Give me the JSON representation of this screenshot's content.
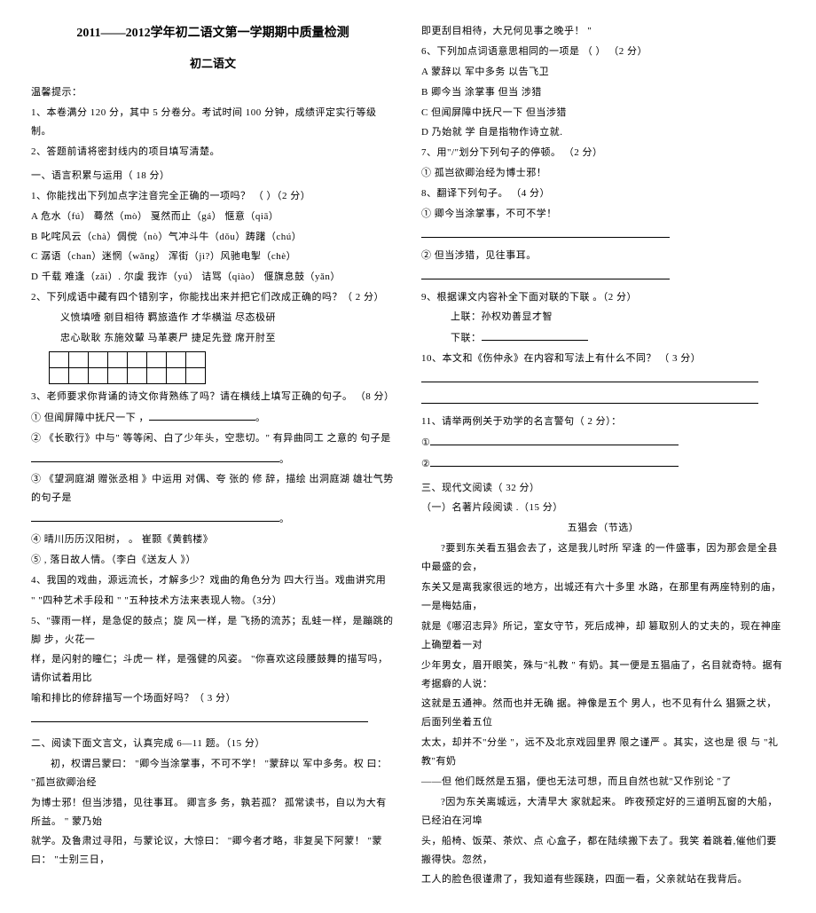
{
  "header": {
    "title": "2011——2012学年初二语文第一学期期中质量检测",
    "subtitle": "初二语文"
  },
  "left": {
    "tip_label": "温馨提示：",
    "tip1": "1、本卷满分  120 分，其中  5 分卷分。考试时间   100 分钟，成绩评定实行等级制。",
    "tip2": "2、答题前请将密封线内的项目填写清楚。",
    "sec1_title": "一、语言积累与运用（   18 分）",
    "q1": "1、你能找出下列加点字注音完全正确的一项吗？  （    ）（2 分）",
    "q1a": "A 危水（fú）   蓦然（mò）   戛然而止（gá）   惬意（qiā）",
    "q1b": "B 叱咤风云（chà）倜傥（nò）气冲斗牛（dǒu）踌躇（chú）",
    "q1c": "C 潺语（chan）迷惘（wǎng） 浑街（jì?）风驰电掣（chè）",
    "q1d": "D 千载 难逢（zǎi）. 尔虞 我诈（yú）  诘骂（qiào） 偃旗息鼓（yǎn）",
    "q2": "2、下列成语中藏有四个错别字，你能找出来并把它们改成正确的吗？（    2 分）",
    "q2_words": "义愤填噎     剜目相待     羁旅造作     才华横溢     尽态极研",
    "q2_words2": "忠心耿耿     东施效颦     马革裹尸     捷足先登     席开肘至",
    "q3": "3、老师要求你背诵的诗文你背熟练了吗？请在横线上填写正确的句子。         （8 分）",
    "q3_1": "①  但闻屏障中抚尺一下  ，",
    "q3_2": "②  《长歌行》中与\"   等等闲、白了少年头，空悲切。\" 有异曲同工 之意的 句子是",
    "q3_3": "③   《望洞庭湖  赠张丞相 》中运用  对偶、夸 张的 修 辞，描绘  出洞庭湖  雄壮气势 的句子是",
    "q3_4": "④  晴川历历汉阳树，                         。 崔颢《黄鹤楼》",
    "q3_5": "⑤                 , 落日故人情。（李白《送友人 》）",
    "q4": "4、我国的戏曲，源远流长，才解多少？戏曲的角色分为          四大行当。戏曲讲究用",
    "q4_2": "\"              \"四种艺术手段和  \"              \"五种技术方法来表现人物。（3分）",
    "q5": "5、\"骤雨一样，是急促的鼓点；旋  风一样，是 飞扬的流苏；乱蛙一样，是蹦跳的脚 步，火花一",
    "q5_2": "样，是闪射的瞳仁；斗虎一 样，是强健的风姿。     \"你喜欢这段腰鼓舞的描写吗，请你试着用比",
    "q5_3": "喻和排比的修辞描写一个场面好吗？（ 3 分）",
    "sec2_title": "二、阅读下面文言文，认真完成      6—11 题。（15 分）",
    "p1": "初，权谓吕蒙曰：  \"卿今当涂掌事，不可不学！     \"蒙辞以 军中多务。权 曰：   \"孤岂欲卿治经",
    "p2": "为博士邪！但当涉猎，见往事耳。   卿言多  务，孰若孤？  孤常读书，自以为大有所益。  \" 蒙乃始",
    "p3": "就学。及鲁肃过寻阳，与蒙论议，大惊曰：     \"卿今者才略，非复吴下阿蒙！     \"蒙曰：  \"士别三日，"
  },
  "right": {
    "p4": "即更刮目相待，大兄何见事之晚乎！   \"",
    "q6": "6、下列加点词语意思相同的一项是  （    ） （2 分）",
    "q6a": "A 蒙辞以 军中多务     以告飞卫",
    "q6b": "B 卿今当  涂掌事       但当 涉猎",
    "q6c": "C  但闻屏障中抚尺一下    但当涉猎",
    "q6d": "D 乃始就  学    自是指物作诗立就.",
    "q7": "7、用\"/\"划分下列句子的停顿。  （2 分）",
    "q7_1": "①  孤岂欲卿治经为博士邪！",
    "q7_2": "8、翻译下列句子。 （4 分）",
    "q7_3": "① 卿今当涂掌事，不可不学！",
    "q7_4": "② 但当涉猎，见往事耳。",
    "q9": "9、根据课文内容补全下面对联的下联 。（2 分）",
    "q9_1": "上联：孙权劝善显才智",
    "q9_2": "下联：",
    "q10": "10、本文和《伤仲永》在内容和写法上有什么不同？ （    3 分）",
    "q11": "11、请举两例关于劝学的名言警句（    2 分）：",
    "q11_1": "①",
    "q11_2": "②",
    "sec3_title": "三、现代文阅读（  32 分）",
    "sec3_sub": "（一）名著片段阅读  .（15 分）",
    "essay_title": "五猖会（节选）",
    "e1": "?要到东关看五猖会去了，这是我儿时所    罕逢 的一件盛事，因为那会是全县中最盛的会，",
    "e2": "东关又是离我家很远的地方，出城还有六十多里 水路，在那里有两座特别的庙，一是梅姑庙，",
    "e3": "就是《哪沼志异》所记，室女守节，死后成神，却 篡取别人的丈夫的，现在神座上确塑着一对",
    "e4": "少年男女，眉开眼笑，殊与\"礼教 \"    有奶。其一便是五猖庙了，名目就奇特。据有考据癖的人说：",
    "e5": "这就是五通神。然而也并无确 据。神像是五个 男人，也不见有什么 猖獗之状，后面列坐着五位",
    "e6": "太太，却并不\"分坐 \"，远不及北京戏园里界 限之谨严 。其实，这也是 很 与 \"礼教\"有奶",
    "e7": "——但 他们既然是五猖，便也无法可想，而且自然也就\"又作别论  \"了",
    "e8": "?因为东关离城远，大清早大 家就起来。 昨夜预定好的三道明瓦窗的大船，已经泊在河埠",
    "e9": "头，船椅、饭菜、茶炊、点 心盒子，都在陆续搬下去了。我笑 着跳着,催他们要搬得快。忽然，",
    "e10": "工人的脸色很谨肃了，我知道有些蹊跷，四面一看，父亲就站在我背后。"
  },
  "grid": {
    "rows": 2,
    "cols": 8
  }
}
